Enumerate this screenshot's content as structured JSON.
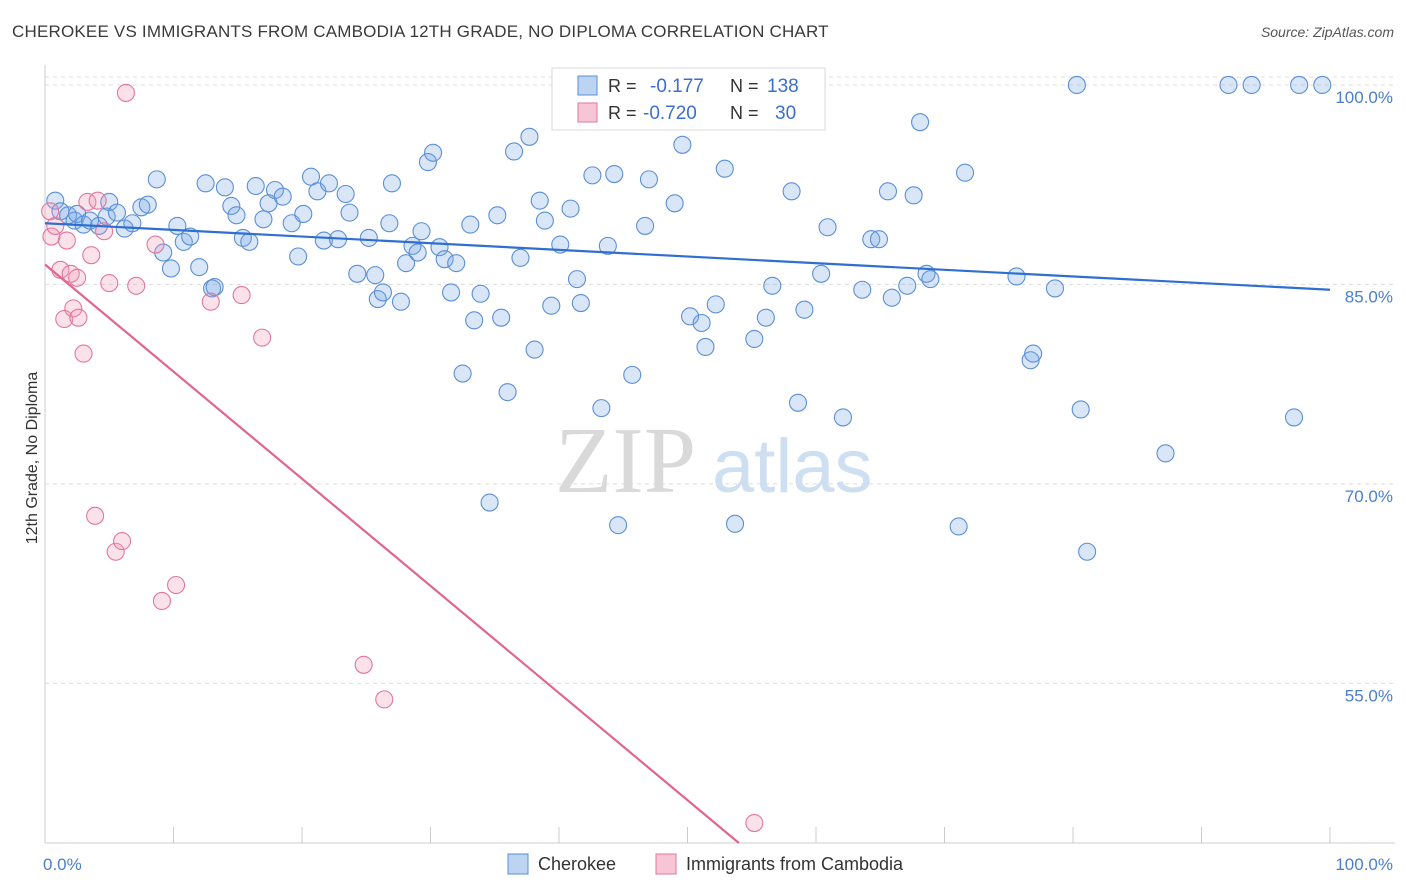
{
  "title": "CHEROKEE VS IMMIGRANTS FROM CAMBODIA 12TH GRADE, NO DIPLOMA CORRELATION CHART",
  "source": "Source: ZipAtlas.com",
  "watermark": {
    "zip": "ZIP",
    "atlas": "atlas"
  },
  "colors": {
    "cherokee": "#5b8fd6",
    "cherokee_fill": "rgba(120,165,230,0.28)",
    "cambodia": "#e2779d",
    "cambodia_fill": "rgba(240,150,180,0.28)",
    "cherokee_line": "#2f6fd0",
    "cambodia_line": "#e06592",
    "tick_label": "#4a7fd0",
    "grid": "#dcdcdc"
  },
  "legend": {
    "rows": [
      {
        "r_label": "R =",
        "r_value": "-0.177",
        "n_label": "N =",
        "n_value": "138"
      },
      {
        "r_label": "R =",
        "r_value": "-0.720",
        "n_label": "N =",
        "n_value": "30"
      }
    ]
  },
  "chart_data": {
    "type": "scatter",
    "title": "CHEROKEE VS IMMIGRANTS FROM CAMBODIA 12TH GRADE, NO DIPLOMA CORRELATION CHART",
    "xlabel": "",
    "ylabel": "12th Grade, No Diploma",
    "xlim": [
      0,
      100
    ],
    "ylim": [
      43,
      101.5
    ],
    "x_tick_labels": [
      "0.0%",
      "100.0%"
    ],
    "y_ticks": [
      55,
      70,
      85,
      100
    ],
    "y_tick_labels": [
      "55.0%",
      "70.0%",
      "85.0%",
      "100.0%"
    ],
    "grid": true,
    "legend_position": "top-center",
    "series": [
      {
        "name": "Cherokee",
        "trend": {
          "x": [
            0,
            100
          ],
          "y": [
            89.6,
            84.6
          ]
        },
        "points": [
          [
            0.8,
            91.3
          ],
          [
            1.2,
            90.5
          ],
          [
            1.8,
            90.2
          ],
          [
            2.3,
            89.8
          ],
          [
            2.5,
            90.3
          ],
          [
            3.0,
            89.5
          ],
          [
            3.5,
            89.8
          ],
          [
            4.2,
            89.4
          ],
          [
            4.8,
            90.1
          ],
          [
            5.0,
            91.2
          ],
          [
            5.6,
            90.4
          ],
          [
            6.2,
            89.2
          ],
          [
            6.8,
            89.6
          ],
          [
            7.5,
            90.8
          ],
          [
            8.0,
            91.0
          ],
          [
            8.7,
            92.9
          ],
          [
            9.2,
            87.4
          ],
          [
            9.8,
            86.2
          ],
          [
            10.3,
            89.4
          ],
          [
            10.8,
            88.2
          ],
          [
            11.3,
            88.6
          ],
          [
            12.0,
            86.3
          ],
          [
            12.5,
            92.6
          ],
          [
            13.0,
            84.7
          ],
          [
            13.2,
            84.8
          ],
          [
            14.0,
            92.3
          ],
          [
            14.5,
            90.9
          ],
          [
            14.9,
            90.2
          ],
          [
            15.4,
            88.5
          ],
          [
            15.9,
            88.2
          ],
          [
            16.4,
            92.4
          ],
          [
            17.0,
            89.9
          ],
          [
            17.4,
            91.1
          ],
          [
            17.9,
            92.1
          ],
          [
            18.5,
            91.6
          ],
          [
            19.2,
            89.6
          ],
          [
            19.7,
            87.1
          ],
          [
            20.1,
            90.3
          ],
          [
            20.7,
            93.1
          ],
          [
            21.2,
            92.0
          ],
          [
            21.7,
            88.3
          ],
          [
            22.1,
            92.6
          ],
          [
            22.8,
            88.4
          ],
          [
            23.4,
            91.8
          ],
          [
            23.7,
            90.4
          ],
          [
            24.3,
            85.8
          ],
          [
            25.2,
            88.5
          ],
          [
            25.7,
            85.7
          ],
          [
            25.9,
            83.9
          ],
          [
            26.3,
            84.4
          ],
          [
            26.8,
            89.6
          ],
          [
            27.0,
            92.6
          ],
          [
            27.7,
            83.7
          ],
          [
            28.1,
            86.6
          ],
          [
            28.6,
            87.9
          ],
          [
            29.0,
            87.4
          ],
          [
            29.3,
            89.0
          ],
          [
            29.8,
            94.2
          ],
          [
            30.2,
            94.9
          ],
          [
            30.7,
            87.8
          ],
          [
            31.1,
            86.9
          ],
          [
            31.6,
            84.4
          ],
          [
            32.0,
            86.6
          ],
          [
            32.5,
            78.3
          ],
          [
            33.1,
            89.5
          ],
          [
            33.4,
            82.3
          ],
          [
            33.9,
            84.3
          ],
          [
            34.6,
            68.6
          ],
          [
            35.2,
            90.2
          ],
          [
            35.5,
            82.5
          ],
          [
            36.0,
            76.9
          ],
          [
            36.5,
            95.0
          ],
          [
            37.0,
            87.0
          ],
          [
            37.7,
            96.1
          ],
          [
            38.1,
            80.1
          ],
          [
            38.5,
            91.3
          ],
          [
            38.9,
            89.8
          ],
          [
            39.4,
            83.4
          ],
          [
            40.1,
            88.0
          ],
          [
            40.9,
            90.7
          ],
          [
            41.4,
            85.4
          ],
          [
            41.7,
            83.6
          ],
          [
            42.6,
            93.2
          ],
          [
            43.3,
            75.7
          ],
          [
            43.8,
            87.9
          ],
          [
            44.3,
            93.3
          ],
          [
            44.6,
            66.9
          ],
          [
            45.7,
            78.2
          ],
          [
            46.1,
            100.0
          ],
          [
            46.7,
            89.4
          ],
          [
            47.0,
            92.9
          ],
          [
            48.1,
            100.0
          ],
          [
            49.0,
            91.1
          ],
          [
            49.6,
            95.5
          ],
          [
            50.2,
            82.6
          ],
          [
            51.1,
            82.1
          ],
          [
            51.4,
            80.3
          ],
          [
            52.2,
            83.5
          ],
          [
            52.9,
            93.7
          ],
          [
            53.1,
            100.0
          ],
          [
            53.7,
            67.0
          ],
          [
            55.2,
            80.9
          ],
          [
            56.1,
            82.5
          ],
          [
            56.6,
            84.9
          ],
          [
            58.1,
            92.0
          ],
          [
            58.6,
            76.1
          ],
          [
            59.1,
            83.1
          ],
          [
            60.4,
            85.8
          ],
          [
            60.9,
            89.3
          ],
          [
            62.1,
            75.0
          ],
          [
            63.6,
            84.6
          ],
          [
            64.3,
            88.4
          ],
          [
            64.9,
            88.4
          ],
          [
            65.6,
            92.0
          ],
          [
            65.9,
            84.0
          ],
          [
            67.1,
            84.9
          ],
          [
            67.6,
            91.7
          ],
          [
            68.1,
            97.2
          ],
          [
            68.6,
            85.8
          ],
          [
            68.9,
            85.4
          ],
          [
            71.1,
            66.8
          ],
          [
            71.6,
            93.4
          ],
          [
            75.6,
            85.6
          ],
          [
            76.7,
            79.3
          ],
          [
            76.9,
            79.8
          ],
          [
            78.6,
            84.7
          ],
          [
            80.3,
            100.0
          ],
          [
            80.6,
            75.6
          ],
          [
            81.1,
            64.9
          ],
          [
            87.2,
            72.3
          ],
          [
            92.1,
            100.0
          ],
          [
            93.9,
            100.0
          ],
          [
            97.2,
            75.0
          ],
          [
            97.6,
            100.0
          ],
          [
            99.4,
            100.0
          ]
        ]
      },
      {
        "name": "Immigrants from Cambodia",
        "trend": {
          "x": [
            0,
            54
          ],
          "y": [
            86.5,
            43
          ]
        },
        "points": [
          [
            0.4,
            90.5
          ],
          [
            0.5,
            88.6
          ],
          [
            0.8,
            89.4
          ],
          [
            1.2,
            86.1
          ],
          [
            1.5,
            82.4
          ],
          [
            1.7,
            88.3
          ],
          [
            2.0,
            85.8
          ],
          [
            2.2,
            83.2
          ],
          [
            2.5,
            85.5
          ],
          [
            2.6,
            82.5
          ],
          [
            3.0,
            79.8
          ],
          [
            3.3,
            91.2
          ],
          [
            3.6,
            87.2
          ],
          [
            3.9,
            67.6
          ],
          [
            4.1,
            91.3
          ],
          [
            4.6,
            89.0
          ],
          [
            5.0,
            85.1
          ],
          [
            5.5,
            64.9
          ],
          [
            6.0,
            65.7
          ],
          [
            6.3,
            99.4
          ],
          [
            7.1,
            84.9
          ],
          [
            8.6,
            88.0
          ],
          [
            9.1,
            61.2
          ],
          [
            10.2,
            62.4
          ],
          [
            12.9,
            83.7
          ],
          [
            15.3,
            84.2
          ],
          [
            16.9,
            81.0
          ],
          [
            24.8,
            56.4
          ],
          [
            26.4,
            53.8
          ],
          [
            55.2,
            44.5
          ]
        ]
      }
    ]
  },
  "bottom_legend": [
    "Cherokee",
    "Immigrants from Cambodia"
  ]
}
